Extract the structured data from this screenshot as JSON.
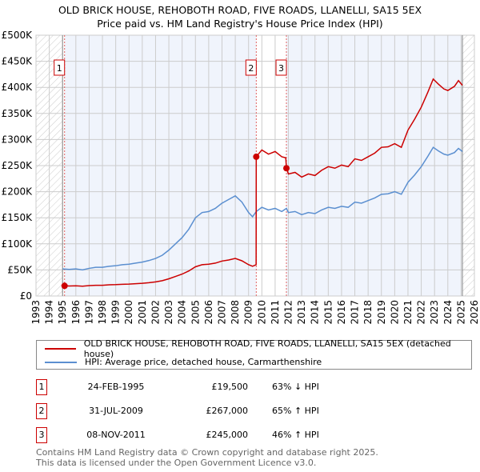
{
  "title": [
    "OLD BRICK HOUSE, REHOBOTH ROAD, FIVE ROADS, LLANELLI, SA15 5EX",
    "Price paid vs. HM Land Registry's House Price Index (HPI)"
  ],
  "chart_data": {
    "type": "line",
    "xlim": [
      1993,
      2026
    ],
    "ylim": [
      0,
      500000
    ],
    "x_ticks": [
      "1993",
      "1994",
      "1995",
      "1996",
      "1997",
      "1998",
      "1999",
      "2000",
      "2001",
      "2002",
      "2003",
      "2004",
      "2005",
      "2006",
      "2007",
      "2008",
      "2009",
      "2010",
      "2011",
      "2012",
      "2013",
      "2014",
      "2015",
      "2016",
      "2017",
      "2018",
      "2019",
      "2020",
      "2021",
      "2022",
      "2023",
      "2024",
      "2025",
      "2026"
    ],
    "y_ticks": [
      {
        "v": 0,
        "label": "£0"
      },
      {
        "v": 50000,
        "label": "£50K"
      },
      {
        "v": 100000,
        "label": "£100K"
      },
      {
        "v": 150000,
        "label": "£150K"
      },
      {
        "v": 200000,
        "label": "£200K"
      },
      {
        "v": 250000,
        "label": "£250K"
      },
      {
        "v": 300000,
        "label": "£300K"
      },
      {
        "v": 350000,
        "label": "£350K"
      },
      {
        "v": 400000,
        "label": "£400K"
      },
      {
        "v": 450000,
        "label": "£450K"
      },
      {
        "v": 500000,
        "label": "£500K"
      }
    ],
    "hatched_before": 1995.0,
    "hatched_after": 2025.1,
    "grid": true,
    "series": [
      {
        "name": "OLD BRICK HOUSE, REHOBOTH ROAD, FIVE ROADS, LLANELLI, SA15 5EX (detached house)",
        "color": "#cc0000",
        "x": [
          1995.15,
          1995.5,
          1996,
          1996.5,
          1997,
          1997.5,
          1998,
          1998.5,
          1999,
          1999.5,
          2000,
          2000.5,
          2001,
          2001.5,
          2002,
          2002.5,
          2003,
          2003.5,
          2004,
          2004.5,
          2005,
          2005.5,
          2006,
          2006.5,
          2007,
          2007.5,
          2008,
          2008.5,
          2009,
          2009.3,
          2009.57,
          2009.58,
          2010,
          2010.5,
          2011,
          2011.5,
          2011.8,
          2011.85,
          2012,
          2012.5,
          2013,
          2013.5,
          2014,
          2014.5,
          2015,
          2015.5,
          2016,
          2016.5,
          2017,
          2017.5,
          2018,
          2018.5,
          2019,
          2019.5,
          2020,
          2020.5,
          2021,
          2021.5,
          2022,
          2022.5,
          2022.9,
          2023.3,
          2023.7,
          2024,
          2024.5,
          2024.8,
          2025.1
        ],
        "y": [
          19500,
          19100,
          19500,
          18800,
          19900,
          20600,
          20600,
          21400,
          21800,
          22500,
          22900,
          23600,
          24400,
          25500,
          27000,
          29300,
          33000,
          37500,
          42000,
          48000,
          56000,
          60000,
          61000,
          63000,
          67000,
          69000,
          72000,
          67500,
          60000,
          57000,
          60000,
          267000,
          280000,
          272000,
          277000,
          267000,
          265000,
          245000,
          234000,
          237000,
          228000,
          234000,
          231000,
          241000,
          248000,
          245000,
          251000,
          248000,
          263000,
          260000,
          267000,
          274000,
          285000,
          286000,
          292000,
          285000,
          318000,
          339000,
          362000,
          391000,
          416000,
          406000,
          397000,
          394000,
          402000,
          413000,
          404000
        ]
      },
      {
        "name": "HPI: Average price, detached house, Carmarthenshire",
        "color": "#5b8fd0",
        "x": [
          1995,
          1995.5,
          1996,
          1996.5,
          1997,
          1997.5,
          1998,
          1998.5,
          1999,
          1999.5,
          2000,
          2000.5,
          2001,
          2001.5,
          2002,
          2002.5,
          2003,
          2003.5,
          2004,
          2004.5,
          2005,
          2005.5,
          2006,
          2006.5,
          2007,
          2007.5,
          2008,
          2008.5,
          2009,
          2009.3,
          2009.58,
          2010,
          2010.5,
          2011,
          2011.5,
          2011.85,
          2012,
          2012.5,
          2013,
          2013.5,
          2014,
          2014.5,
          2015,
          2015.5,
          2016,
          2016.5,
          2017,
          2017.5,
          2018,
          2018.5,
          2019,
          2019.5,
          2020,
          2020.5,
          2021,
          2021.5,
          2022,
          2022.5,
          2022.9,
          2023.3,
          2023.7,
          2024,
          2024.5,
          2024.8,
          2025.1
        ],
        "y": [
          52000,
          51000,
          52000,
          50000,
          53000,
          55000,
          55000,
          57000,
          58000,
          60000,
          61000,
          63000,
          65000,
          68000,
          72000,
          78000,
          88000,
          100000,
          112000,
          128000,
          150000,
          160000,
          162000,
          168000,
          178000,
          185000,
          192000,
          180000,
          160000,
          152000,
          162000,
          170000,
          165000,
          168000,
          162000,
          168000,
          160000,
          162000,
          156000,
          160000,
          158000,
          165000,
          170000,
          168000,
          172000,
          170000,
          180000,
          178000,
          183000,
          188000,
          195000,
          196000,
          200000,
          195000,
          218000,
          232000,
          248000,
          268000,
          285000,
          278000,
          272000,
          270000,
          275000,
          283000,
          277000
        ]
      }
    ],
    "sales": [
      {
        "label": "1",
        "x": 1995.15,
        "y": 19500
      },
      {
        "label": "2",
        "x": 2009.58,
        "y": 267000
      },
      {
        "label": "3",
        "x": 2011.85,
        "y": 245000
      }
    ]
  },
  "legend": {
    "red": "OLD BRICK HOUSE, REHOBOTH ROAD, FIVE ROADS, LLANELLI, SA15 5EX (detached house)",
    "blue": "HPI: Average price, detached house, Carmarthenshire"
  },
  "transactions": [
    {
      "num": "1",
      "date": "24-FEB-1995",
      "price": "£19,500",
      "hpi": "63% ↓ HPI"
    },
    {
      "num": "2",
      "date": "31-JUL-2009",
      "price": "£267,000",
      "hpi": "65% ↑ HPI"
    },
    {
      "num": "3",
      "date": "08-NOV-2011",
      "price": "£245,000",
      "hpi": "46% ↑ HPI"
    }
  ],
  "footer": [
    "Contains HM Land Registry data © Crown copyright and database right 2025.",
    "This data is licensed under the Open Government Licence v3.0."
  ]
}
